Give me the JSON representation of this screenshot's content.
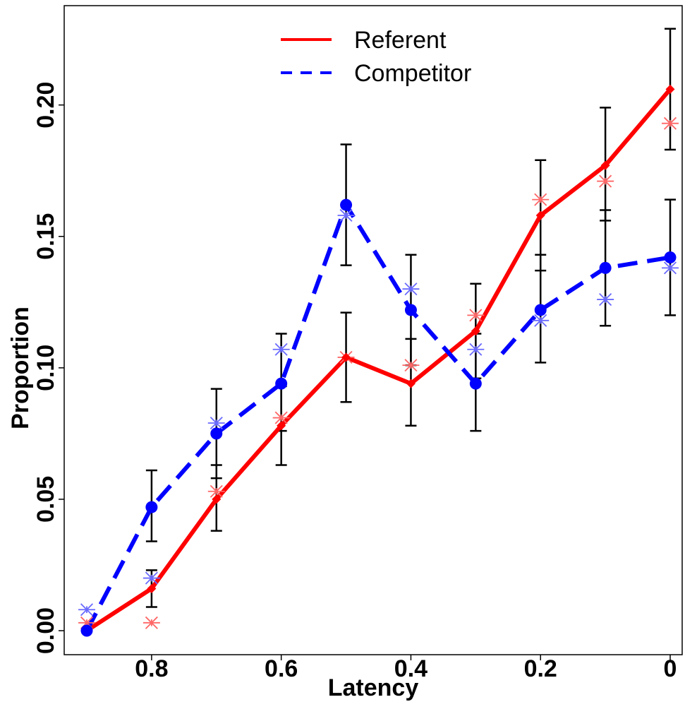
{
  "chart_data": {
    "type": "line",
    "xlabel": "Latency",
    "ylabel": "Proportion",
    "x_reversed": true,
    "xlim": [
      0.9,
      0.0
    ],
    "ylim": [
      0.0,
      0.23
    ],
    "x_ticks": [
      {
        "value": 0.8,
        "label": "0.8"
      },
      {
        "value": 0.6,
        "label": "0.6"
      },
      {
        "value": 0.4,
        "label": "0.4"
      },
      {
        "value": 0.2,
        "label": "0.2"
      },
      {
        "value": 0.0,
        "label": "0"
      }
    ],
    "y_ticks": [
      {
        "value": 0.0,
        "label": "0.00"
      },
      {
        "value": 0.05,
        "label": "0.05"
      },
      {
        "value": 0.1,
        "label": "0.10"
      },
      {
        "value": 0.15,
        "label": "0.15"
      },
      {
        "value": 0.2,
        "label": "0.20"
      }
    ],
    "grid": false,
    "legend_position": "top-center",
    "x": [
      0.9,
      0.8,
      0.7,
      0.6,
      0.5,
      0.4,
      0.3,
      0.2,
      0.1,
      0.0
    ],
    "series": [
      {
        "name": "Referent",
        "color": "#ff0000",
        "line_style": "solid",
        "marker": "diamond",
        "values": [
          0.0,
          0.016,
          0.05,
          0.078,
          0.104,
          0.094,
          0.114,
          0.158,
          0.177,
          0.206
        ],
        "error_low": [
          0.0,
          0.009,
          0.038,
          0.063,
          0.087,
          0.078,
          0.096,
          0.137,
          0.156,
          0.183
        ],
        "error_high": [
          0.0,
          0.023,
          0.063,
          0.093,
          0.121,
          0.111,
          0.132,
          0.179,
          0.199,
          0.229
        ],
        "observed": [
          0.003,
          0.003,
          0.053,
          0.081,
          0.104,
          0.101,
          0.12,
          0.164,
          0.171,
          0.193
        ]
      },
      {
        "name": "Competitor",
        "color": "#0000ff",
        "line_style": "dashed",
        "marker": "circle",
        "values": [
          0.0,
          0.047,
          0.075,
          0.094,
          0.162,
          0.122,
          0.094,
          0.122,
          0.138,
          0.142
        ],
        "error_low": [
          0.0,
          0.034,
          0.058,
          0.076,
          0.139,
          0.101,
          0.076,
          0.102,
          0.116,
          0.12
        ],
        "error_high": [
          0.0,
          0.061,
          0.092,
          0.113,
          0.185,
          0.143,
          0.113,
          0.143,
          0.16,
          0.164
        ],
        "observed": [
          0.008,
          0.02,
          0.079,
          0.107,
          0.158,
          0.13,
          0.107,
          0.118,
          0.126,
          0.138
        ]
      }
    ]
  }
}
